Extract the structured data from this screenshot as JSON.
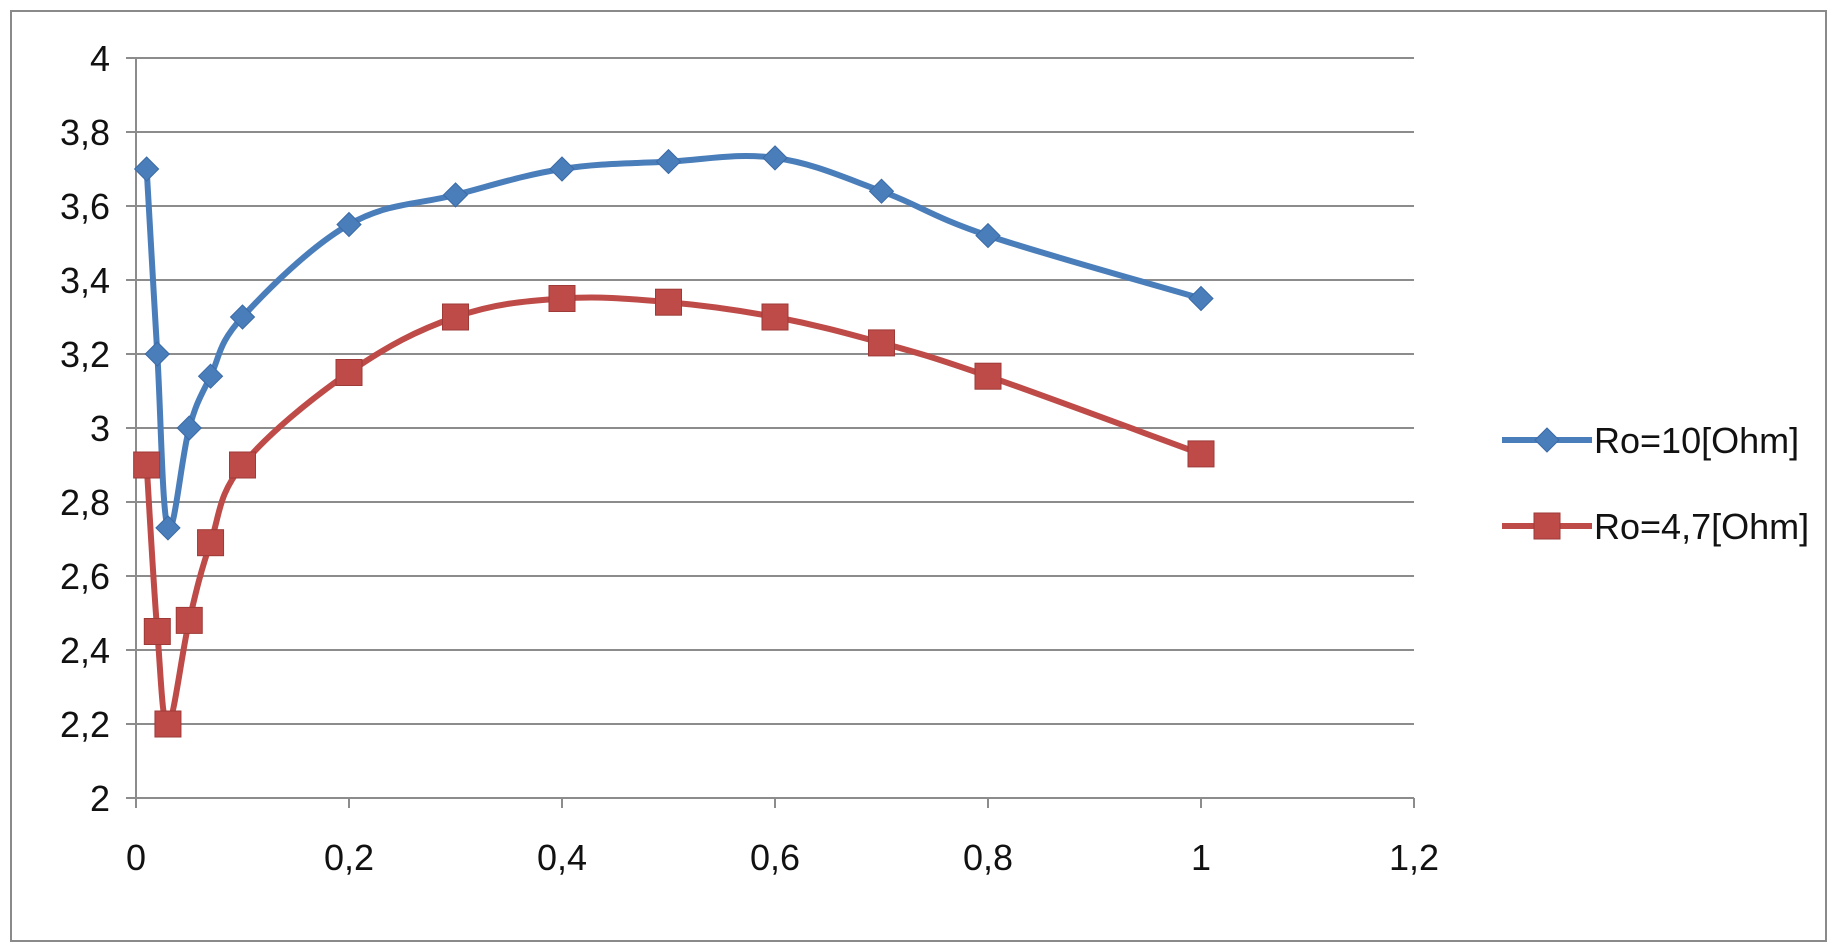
{
  "chart_data": {
    "type": "line",
    "title": "",
    "xlabel": "",
    "ylabel": "",
    "xlim": [
      0,
      1.2
    ],
    "ylim": [
      2,
      4
    ],
    "x_ticks": [
      0,
      0.2,
      0.4,
      0.6,
      0.8,
      1,
      1.2
    ],
    "x_tick_labels": [
      "0",
      "0,2",
      "0,4",
      "0,6",
      "0,8",
      "1",
      "1,2"
    ],
    "y_ticks": [
      2,
      2.2,
      2.4,
      2.6,
      2.8,
      3,
      3.2,
      3.4,
      3.6,
      3.8,
      4
    ],
    "y_tick_labels": [
      "2",
      "2,2",
      "2,4",
      "2,6",
      "2,8",
      "3",
      "3,2",
      "3,4",
      "3,6",
      "3,8",
      "4"
    ],
    "grid": "horizontal",
    "legend_position": "right",
    "smooth_lines": true,
    "series": [
      {
        "name": "Ro=10[Ohm]",
        "color": "#4a7ebb",
        "marker": "diamond",
        "x": [
          0.01,
          0.02,
          0.03,
          0.05,
          0.07,
          0.1,
          0.2,
          0.3,
          0.4,
          0.5,
          0.6,
          0.7,
          0.8,
          1.0
        ],
        "y": [
          3.7,
          3.2,
          2.73,
          3.0,
          3.14,
          3.3,
          3.55,
          3.63,
          3.7,
          3.72,
          3.73,
          3.64,
          3.52,
          3.35
        ]
      },
      {
        "name": "Ro=4,7[Ohm]",
        "color": "#be4b48",
        "marker": "square",
        "x": [
          0.01,
          0.02,
          0.03,
          0.05,
          0.07,
          0.1,
          0.2,
          0.3,
          0.4,
          0.5,
          0.6,
          0.7,
          0.8,
          1.0
        ],
        "y": [
          2.9,
          2.45,
          2.2,
          2.48,
          2.69,
          2.9,
          3.15,
          3.3,
          3.35,
          3.34,
          3.3,
          3.23,
          3.14,
          2.93
        ]
      }
    ]
  }
}
